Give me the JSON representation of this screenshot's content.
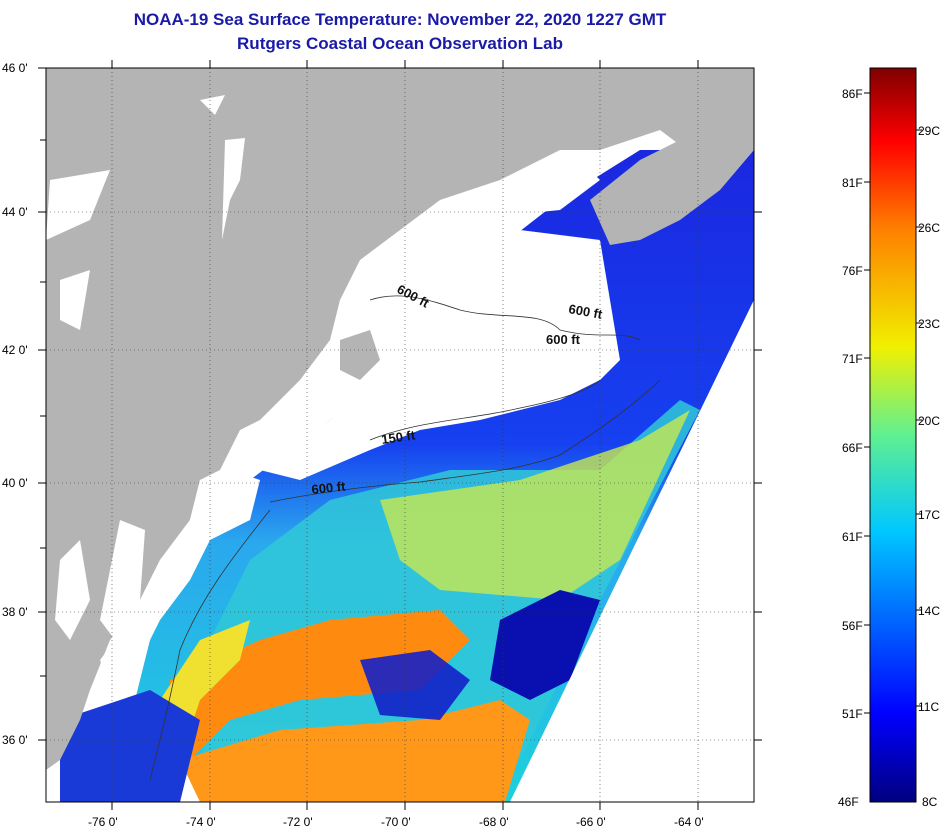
{
  "header": {
    "title": "NOAA-19 Sea Surface Temperature:  November 22, 2020 1227 GMT",
    "subtitle": "Rutgers Coastal Ocean Observation Lab"
  },
  "map": {
    "lat_ticks": [
      "46 0'",
      "44 0'",
      "42 0'",
      "40 0'",
      "38 0'",
      "36 0'"
    ],
    "lon_ticks": [
      "-76 0'",
      "-74 0'",
      "-72 0'",
      "-70 0'",
      "-68 0'",
      "-66 0'",
      "-64 0'"
    ],
    "isobaths": [
      {
        "label": "600 ft"
      },
      {
        "label": "600 ft"
      },
      {
        "label": "600 ft"
      },
      {
        "label": "150 ft"
      },
      {
        "label": "600 ft"
      }
    ],
    "colors": {
      "land": "#b4b4b4",
      "cloud_mask": "#ffffff"
    }
  },
  "colorbar": {
    "fahrenheit": [
      "86F",
      "81F",
      "76F",
      "71F",
      "66F",
      "61F",
      "56F",
      "51F",
      "46F"
    ],
    "celsius": [
      "29C",
      "26C",
      "23C",
      "20C",
      "17C",
      "14C",
      "11C",
      "8C"
    ],
    "colors": [
      "#00007f",
      "#0000ff",
      "#007fff",
      "#00ffff",
      "#7fff7f",
      "#ffff00",
      "#ff7f00",
      "#ff0000",
      "#7f0000"
    ]
  }
}
